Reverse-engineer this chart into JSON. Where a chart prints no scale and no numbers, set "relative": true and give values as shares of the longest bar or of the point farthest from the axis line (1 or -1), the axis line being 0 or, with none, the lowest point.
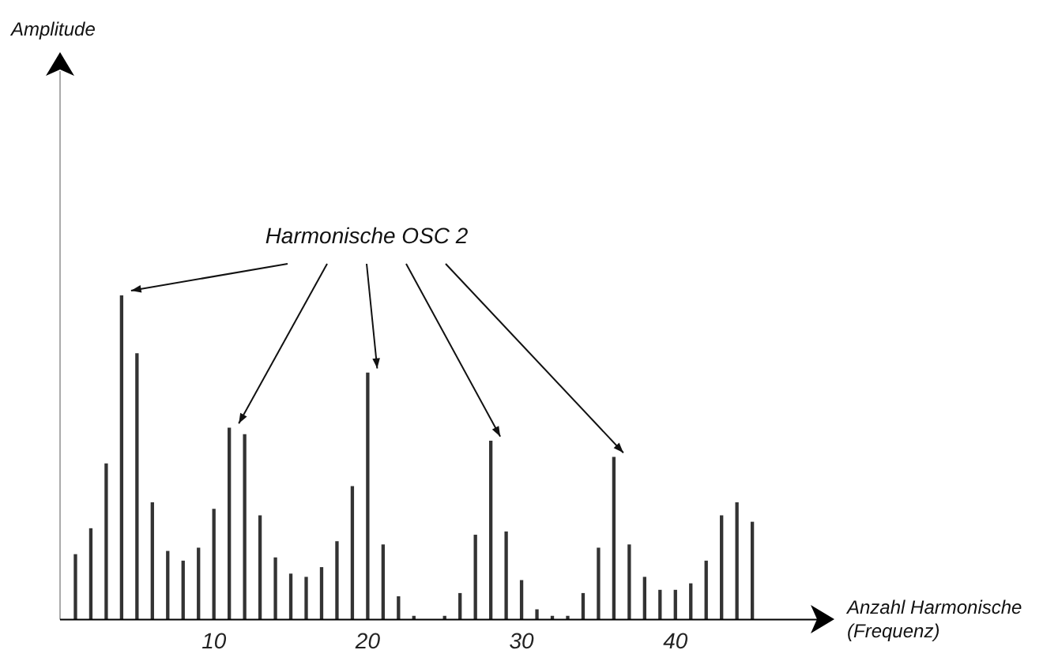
{
  "chart_data": {
    "type": "bar",
    "relative": true,
    "xlabel": "Anzahl Harmonische\n(Frequenz)",
    "annotations": [
      "Amplitude"
    ],
    "xlim": [
      0,
      49
    ],
    "xticks": [
      10,
      20,
      30,
      40
    ],
    "grid": false,
    "legend": false,
    "x": [
      1,
      2,
      3,
      4,
      5,
      6,
      7,
      8,
      9,
      10,
      11,
      12,
      13,
      14,
      15,
      16,
      17,
      18,
      19,
      20,
      21,
      22,
      23,
      24,
      25,
      26,
      27,
      28,
      29,
      30,
      31,
      32,
      33,
      34,
      35,
      36,
      37,
      38,
      39,
      40,
      41,
      42,
      43,
      44,
      45
    ],
    "series": [
      {
        "color": "#333333",
        "values": [
          0.2,
          0.28,
          0.48,
          null,
          0.82,
          0.36,
          0.21,
          0.18,
          0.22,
          0.34,
          null,
          0.57,
          0.32,
          0.19,
          0.14,
          0.13,
          0.16,
          0.24,
          0.41,
          null,
          0.23,
          0.07,
          0.01,
          null,
          0.01,
          0.08,
          0.26,
          null,
          0.27,
          0.12,
          0.03,
          0.01,
          0.01,
          0.08,
          0.22,
          null,
          0.23,
          0.13,
          0.09,
          0.09,
          0.11,
          0.18,
          0.32,
          0.36,
          0.3
        ]
      },
      {
        "name": "Harmonische OSC 2",
        "color": "#333333",
        "values": [
          null,
          null,
          null,
          1,
          null,
          null,
          null,
          null,
          null,
          null,
          0.59,
          null,
          null,
          null,
          null,
          null,
          null,
          null,
          null,
          0.76,
          null,
          null,
          null,
          null,
          null,
          null,
          null,
          0.55,
          null,
          null,
          null,
          null,
          null,
          null,
          null,
          0.5,
          null,
          null,
          null,
          null,
          null,
          null,
          null,
          null,
          null
        ]
      }
    ]
  }
}
